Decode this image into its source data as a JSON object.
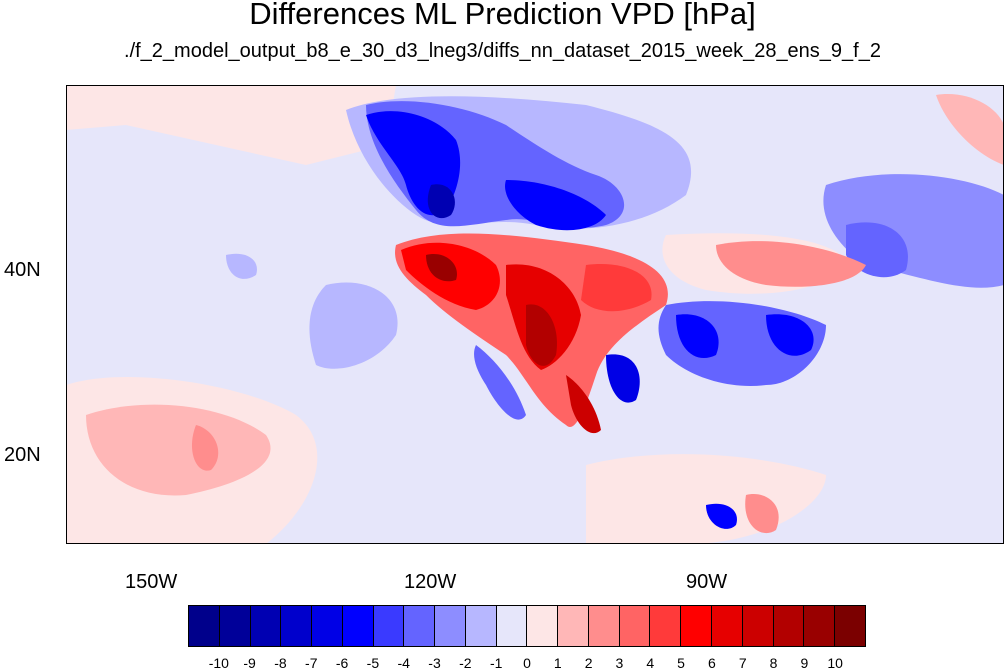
{
  "title": "Differences ML Prediction VPD [hPa]",
  "subtitle": "./f_2_model_output_b8_e_30_d3_lneg3/diffs_nn_dataset_2015_week_28_ens_9_f_2",
  "axes": {
    "lat_labels": [
      "40N",
      "20N"
    ],
    "lon_labels": [
      "150W",
      "120W",
      "90W"
    ]
  },
  "colorbar": {
    "labels": [
      "-10",
      "-9",
      "-8",
      "-7",
      "-6",
      "-5",
      "-4",
      "-3",
      "-2",
      "-1",
      "0",
      "1",
      "2",
      "3",
      "4",
      "5",
      "6",
      "7",
      "8",
      "9",
      "10"
    ],
    "colors": [
      "#00008b",
      "#000099",
      "#0000b2",
      "#0000cc",
      "#0000e6",
      "#0000ff",
      "#3a3aff",
      "#6464ff",
      "#8d8dff",
      "#b7b7ff",
      "#e6e6fa",
      "#fde6e6",
      "#ffb7b7",
      "#ff8d8d",
      "#ff6464",
      "#ff3a3a",
      "#ff0000",
      "#e60000",
      "#cc0000",
      "#b20000",
      "#990000",
      "#7b0000"
    ]
  }
}
